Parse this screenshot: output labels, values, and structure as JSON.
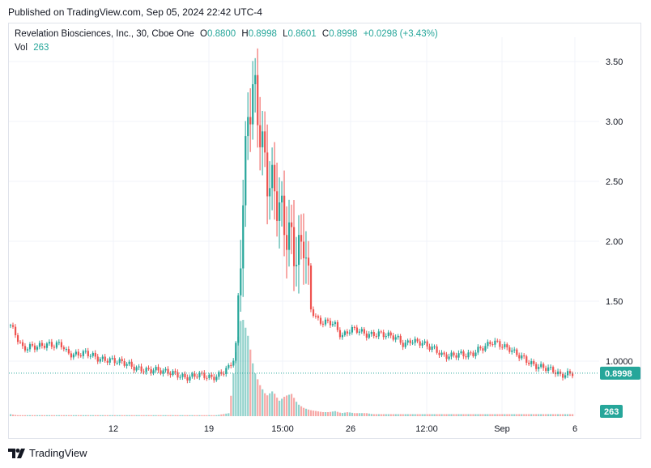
{
  "header": {
    "published": "Published on TradingView.com, Sep 05, 2024 22:42 UTC-4"
  },
  "legend": {
    "symbol": "Revelation Biosciences, Inc., 30, Cboe One",
    "o_label": "O",
    "o_value": "0.8800",
    "h_label": "H",
    "h_value": "0.8998",
    "l_label": "L",
    "l_value": "0.8601",
    "c_label": "C",
    "c_value": "0.8998",
    "change": "+0.0298 (+3.43%)",
    "vol_label": "Vol",
    "vol_value": "263"
  },
  "footer": {
    "brand": "TradingView"
  },
  "colors": {
    "up": "#26a69a",
    "down": "#ef5350",
    "grid": "#f0f3fa"
  },
  "chart_data": {
    "type": "candlestick",
    "ylim": [
      0.6,
      3.6
    ],
    "y_ticks": [
      "3.50",
      "3.00",
      "2.50",
      "2.00",
      "1.50",
      "1.0000"
    ],
    "x_ticks": [
      "12",
      "19",
      "15:00",
      "26",
      "12:00",
      "Sep",
      "6"
    ],
    "last_price": "0.8998",
    "last_volume": "263",
    "price_path": [
      1.3,
      1.2,
      1.1,
      1.12,
      1.12,
      1.13,
      1.14,
      1.13,
      1.15,
      1.07,
      1.05,
      1.06,
      1.07,
      1.05,
      1.02,
      1.01,
      1.01,
      1.0,
      0.99,
      0.97,
      0.94,
      0.93,
      0.92,
      0.93,
      0.92,
      0.91,
      0.9,
      0.88,
      0.86,
      0.87,
      0.89,
      0.88,
      0.86,
      0.87,
      0.91,
      0.95,
      1.05,
      2.1,
      3.05,
      3.3,
      2.9,
      2.55,
      2.45,
      2.3,
      2.1,
      2.0,
      1.85,
      2.05,
      1.45,
      1.35,
      1.32,
      1.33,
      1.3,
      1.2,
      1.25,
      1.27,
      1.25,
      1.22,
      1.22,
      1.23,
      1.22,
      1.21,
      1.19,
      1.13,
      1.17,
      1.16,
      1.15,
      1.12,
      1.1,
      1.05,
      1.04,
      1.05,
      1.06,
      1.05,
      1.06,
      1.1,
      1.12,
      1.16,
      1.15,
      1.12,
      1.1,
      1.06,
      1.03,
      0.99,
      0.96,
      0.95,
      0.94,
      0.92,
      0.88,
      0.89,
      0.9
    ],
    "volume_path": [
      0.02,
      0.01,
      0.01,
      0.01,
      0.01,
      0.01,
      0.01,
      0.01,
      0.01,
      0.01,
      0.01,
      0.01,
      0.01,
      0.01,
      0.01,
      0.01,
      0.01,
      0.01,
      0.01,
      0.01,
      0.01,
      0.01,
      0.01,
      0.01,
      0.01,
      0.01,
      0.01,
      0.01,
      0.01,
      0.01,
      0.01,
      0.01,
      0.01,
      0.01,
      0.02,
      0.03,
      0.6,
      1.0,
      0.8,
      0.45,
      0.3,
      0.2,
      0.25,
      0.15,
      0.2,
      0.22,
      0.12,
      0.08,
      0.06,
      0.05,
      0.04,
      0.04,
      0.05,
      0.03,
      0.04,
      0.03,
      0.03,
      0.03,
      0.02,
      0.02,
      0.02,
      0.02,
      0.02,
      0.02,
      0.02,
      0.02,
      0.02,
      0.02,
      0.02,
      0.02,
      0.02,
      0.02,
      0.02,
      0.02,
      0.02,
      0.02,
      0.02,
      0.02,
      0.02,
      0.02,
      0.02,
      0.02,
      0.02,
      0.02,
      0.02,
      0.02,
      0.02,
      0.02,
      0.02,
      0.02,
      0.02
    ]
  }
}
